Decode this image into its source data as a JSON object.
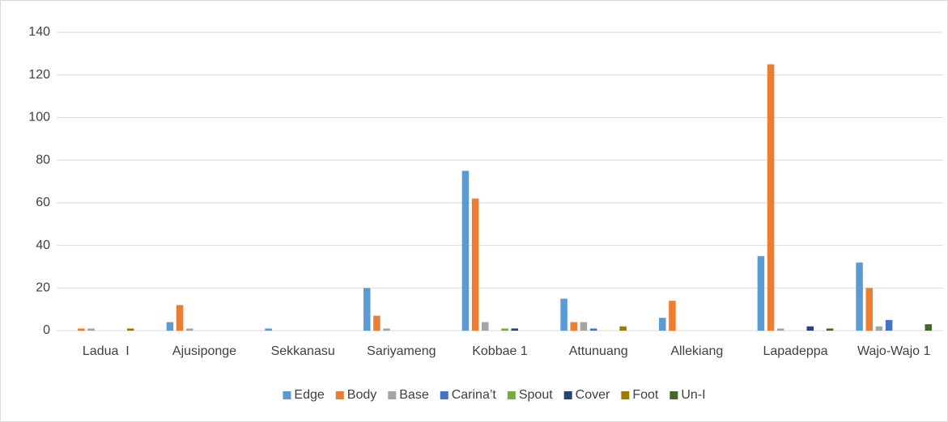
{
  "chart_data": {
    "type": "bar",
    "categories": [
      "Ladua  I",
      "Ajusiponge",
      "Sekkanasu",
      "Sariyameng",
      "Kobbae 1",
      "Attunuang",
      "Allekiang",
      "Lapadeppa",
      "Wajo-Wajo 1"
    ],
    "series": [
      {
        "name": "Edge",
        "color": "#5b9bd5",
        "values": [
          0,
          4,
          1,
          20,
          75,
          15,
          6,
          35,
          32
        ]
      },
      {
        "name": "Body",
        "color": "#ed7d31",
        "values": [
          1,
          12,
          0,
          7,
          62,
          4,
          14,
          125,
          20
        ]
      },
      {
        "name": "Base",
        "color": "#a5a5a5",
        "values": [
          1,
          1,
          0,
          1,
          4,
          4,
          0,
          1,
          2
        ]
      },
      {
        "name": "Carina’t",
        "color": "#4472c4",
        "values": [
          0,
          0,
          0,
          0,
          0,
          1,
          0,
          0,
          5
        ]
      },
      {
        "name": "Spout",
        "color": "#70ad47",
        "values": [
          0,
          0,
          0,
          0,
          1,
          0,
          0,
          0,
          0
        ]
      },
      {
        "name": "Cover",
        "color": "#264478",
        "values": [
          0,
          0,
          0,
          0,
          1,
          0,
          0,
          2,
          0
        ]
      },
      {
        "name": "Foot",
        "color": "#9e7a00",
        "values": [
          1,
          0,
          0,
          0,
          0,
          2,
          0,
          0,
          0
        ]
      },
      {
        "name": "Un-I",
        "color": "#43682b",
        "values": [
          0,
          0,
          0,
          0,
          0,
          0,
          0,
          1,
          3
        ]
      }
    ],
    "ylim": [
      0,
      140
    ],
    "yticks": [
      0,
      20,
      40,
      60,
      80,
      100,
      120,
      140
    ],
    "grid": true,
    "legend": "bottom"
  }
}
